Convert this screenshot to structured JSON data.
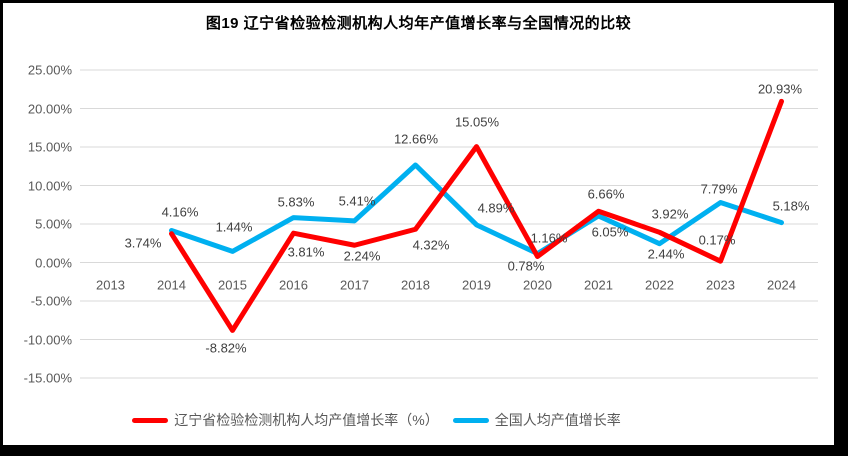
{
  "title": "图19 辽宁省检验检测机构人均年产值增长率与全国情况的比较",
  "colors": {
    "frame_border": "#000000",
    "plot_background": "#ffffff",
    "gridline": "#d9d9d9",
    "axis_label": "#595959",
    "data_label": "#404040",
    "series_liaoning": "#ff0000",
    "series_national": "#00b0f0"
  },
  "chart_data": {
    "type": "line",
    "title": "图19 辽宁省检验检测机构人均年产值增长率与全国情况的比较",
    "categories": [
      "2013",
      "2014",
      "2015",
      "2016",
      "2017",
      "2018",
      "2019",
      "2020",
      "2021",
      "2022",
      "2023",
      "2024"
    ],
    "y_ticks": [
      "25.00%",
      "20.00%",
      "15.00%",
      "10.00%",
      "5.00%",
      "0.00%",
      "-5.00%",
      "-10.00%",
      "-15.00%"
    ],
    "ylim": [
      -15,
      25
    ],
    "grid": true,
    "legend_position": "bottom",
    "xlabel": "",
    "ylabel": "",
    "series": [
      {
        "name": "辽宁省检验检测机构人均产值增长率（%）",
        "color": "#ff0000",
        "values": [
          null,
          3.74,
          -8.82,
          3.81,
          2.24,
          4.32,
          15.05,
          0.78,
          6.66,
          3.92,
          0.17,
          20.93
        ],
        "label_positions": [
          null,
          [
            143,
            243
          ],
          [
            226,
            348
          ],
          [
            306,
            252
          ],
          [
            362,
            256
          ],
          [
            431,
            245
          ],
          [
            477,
            122
          ],
          [
            526,
            266
          ],
          [
            606,
            194
          ],
          [
            670,
            214
          ],
          [
            717,
            240
          ],
          [
            780,
            89
          ]
        ]
      },
      {
        "name": "全国人均产值增长率",
        "color": "#00b0f0",
        "values": [
          null,
          4.16,
          1.44,
          5.83,
          5.41,
          12.66,
          4.89,
          1.16,
          6.05,
          2.44,
          7.79,
          5.18
        ],
        "label_positions": [
          null,
          [
            180,
            212
          ],
          [
            234,
            227
          ],
          [
            296,
            202
          ],
          [
            357,
            201
          ],
          [
            416,
            139
          ],
          [
            496,
            208
          ],
          [
            549,
            238
          ],
          [
            610,
            232
          ],
          [
            666,
            254
          ],
          [
            719,
            189
          ],
          [
            791,
            206
          ]
        ]
      }
    ]
  }
}
